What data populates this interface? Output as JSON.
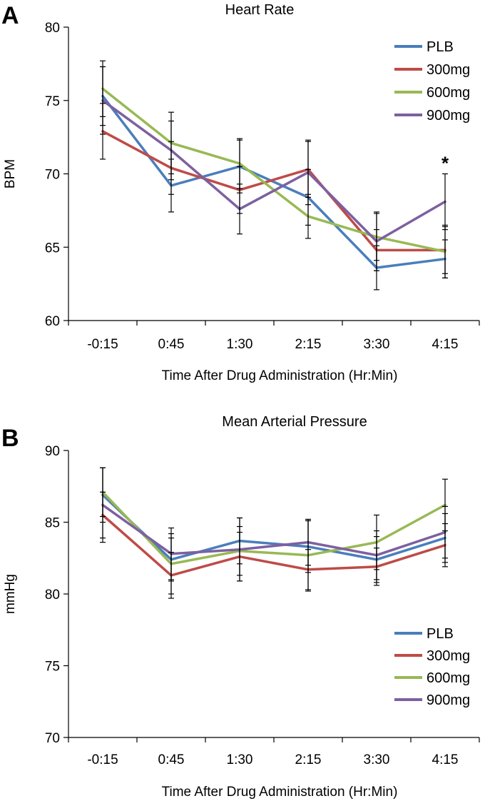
{
  "chart_data": [
    {
      "panel_letter": "A",
      "type": "line",
      "title": "Heart Rate",
      "xlabel": "Time After Drug Administration (Hr:Min)",
      "ylabel": "BPM",
      "ylim": [
        60,
        80
      ],
      "yticks": [
        "60",
        "65",
        "70",
        "75",
        "80"
      ],
      "categories": [
        "-0:15",
        "0:45",
        "1:30",
        "2:15",
        "3:30",
        "4:15"
      ],
      "legend_position": "top-right",
      "series": [
        {
          "name": "PLB",
          "color": "#4a7ebb",
          "values": [
            75.3,
            69.2,
            70.5,
            68.4,
            63.6,
            64.2
          ],
          "err": [
            2.0,
            1.8,
            1.8,
            1.9,
            1.5,
            1.3
          ]
        },
        {
          "name": "300mg",
          "color": "#be4b48",
          "values": [
            72.9,
            70.4,
            68.9,
            70.3,
            64.8,
            64.8
          ],
          "err": [
            1.9,
            1.8,
            1.6,
            1.9,
            1.4,
            1.6
          ]
        },
        {
          "name": "600mg",
          "color": "#98b954",
          "values": [
            75.8,
            72.1,
            70.7,
            67.1,
            65.7,
            64.7
          ],
          "err": [
            1.9,
            2.1,
            1.7,
            1.5,
            1.6,
            1.8
          ]
        },
        {
          "name": "900mg",
          "color": "#7d60a0",
          "values": [
            75.0,
            71.6,
            67.6,
            70.1,
            65.4,
            68.1
          ],
          "err": [
            2.3,
            2.0,
            1.7,
            2.2,
            2.0,
            1.9
          ]
        }
      ],
      "annotations": [
        {
          "text": "*",
          "category": "4:15"
        }
      ]
    },
    {
      "panel_letter": "B",
      "type": "line",
      "title": "Mean Arterial Pressure",
      "xlabel": "Time After Drug Administration (Hr:Min)",
      "ylabel": "mmHg",
      "ylim": [
        70,
        90
      ],
      "yticks": [
        "70",
        "75",
        "80",
        "85",
        "90"
      ],
      "categories": [
        "-0:15",
        "0:45",
        "1:30",
        "2:15",
        "3:30",
        "4:15"
      ],
      "legend_position": "bottom-right",
      "series": [
        {
          "name": "PLB",
          "color": "#4a7ebb",
          "values": [
            86.9,
            82.4,
            83.7,
            83.3,
            82.4,
            83.9
          ],
          "err": [
            1.9,
            1.5,
            1.6,
            1.8,
            1.6,
            1.7
          ]
        },
        {
          "name": "300mg",
          "color": "#be4b48",
          "values": [
            85.5,
            81.3,
            82.6,
            81.7,
            81.9,
            83.4
          ],
          "err": [
            1.6,
            1.6,
            1.7,
            1.4,
            1.3,
            1.5
          ]
        },
        {
          "name": "600mg",
          "color": "#98b954",
          "values": [
            87.1,
            82.1,
            83.0,
            82.7,
            83.6,
            86.2
          ],
          "err": [
            1.7,
            2.1,
            1.7,
            2.5,
            1.9,
            1.8
          ]
        },
        {
          "name": "900mg",
          "color": "#7d60a0",
          "values": [
            86.2,
            82.8,
            83.1,
            83.6,
            82.7,
            84.3
          ],
          "err": [
            2.6,
            1.8,
            2.2,
            1.6,
            1.7,
            1.8
          ]
        }
      ],
      "annotations": []
    }
  ]
}
